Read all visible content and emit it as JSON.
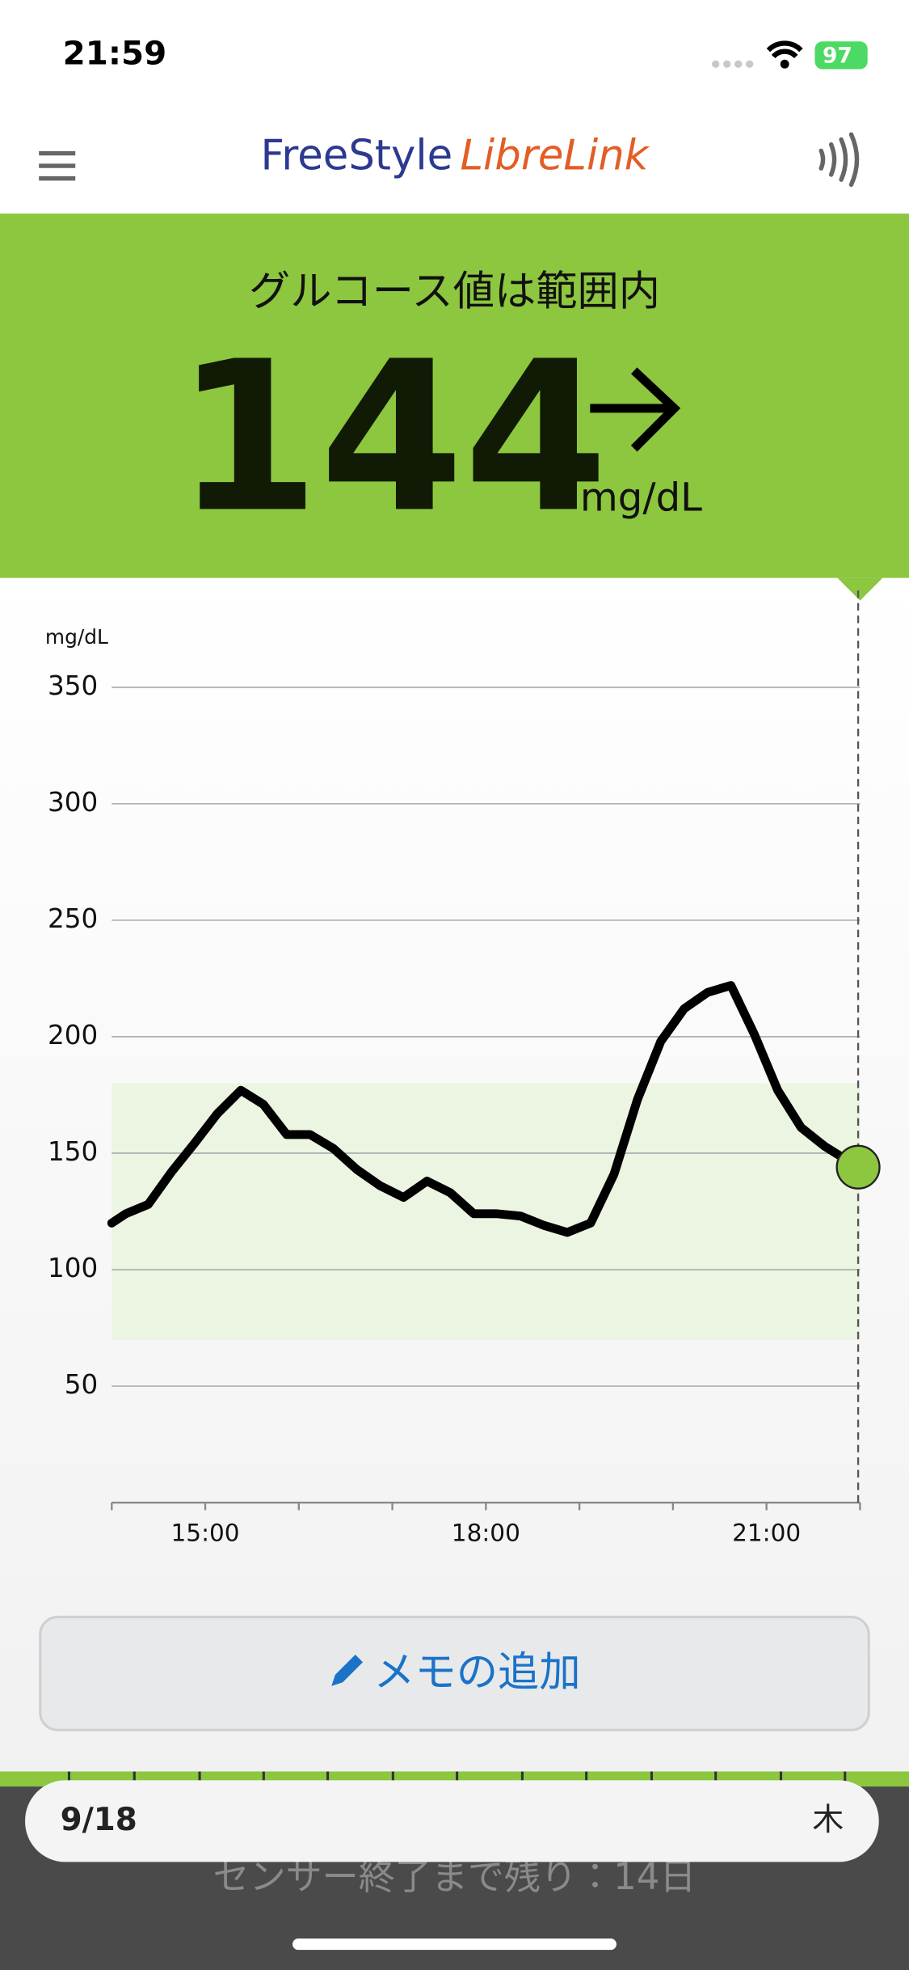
{
  "status_bar": {
    "time": "21:59",
    "battery": 97
  },
  "header": {
    "brand_1": "FreeStyle",
    "brand_2": "LibreLink"
  },
  "reading": {
    "status": "グルコース値は範囲内",
    "value": 144,
    "unit": "mg/dL"
  },
  "chart_data": {
    "type": "line",
    "y_label": "mg/dL",
    "color": "#000000",
    "x": [
      14.0,
      14.15,
      14.39,
      14.64,
      14.88,
      15.13,
      15.38,
      15.62,
      15.87,
      16.12,
      16.37,
      16.62,
      16.87,
      17.12,
      17.37,
      17.62,
      17.87,
      18.12,
      18.37,
      18.62,
      18.87,
      19.12,
      19.37,
      19.62,
      19.87,
      20.12,
      20.37,
      20.62,
      20.87,
      21.12,
      21.37,
      21.62,
      21.98
    ],
    "values": [
      120,
      124,
      128,
      142,
      154,
      167,
      177,
      171,
      158,
      158,
      152,
      143,
      136,
      131,
      138,
      133,
      124,
      124,
      123,
      119,
      116,
      120,
      141,
      173,
      198,
      212,
      219,
      222,
      201,
      177,
      161,
      153,
      144
    ],
    "xlim": [
      14,
      22
    ],
    "xticks": [
      {
        "value": 15,
        "label": "15:00"
      },
      {
        "value": 18,
        "label": "18:00"
      },
      {
        "value": 21,
        "label": "21:00"
      }
    ],
    "x_minor_ticks": [
      14,
      16,
      17,
      19,
      20,
      22
    ],
    "ylim": [
      0,
      350
    ],
    "yticks": [
      50,
      100,
      150,
      200,
      250,
      300,
      350
    ],
    "grid": true,
    "target_range": [
      70,
      180
    ],
    "target_color": "#ebf5e2",
    "current_x": 21.98,
    "current_color": "#8dc63f"
  },
  "memo_button": "メモの追加",
  "date_bar": {
    "date": "9/18",
    "weekday": "木"
  },
  "sensor_note": "センサー終了まで残り：14日"
}
